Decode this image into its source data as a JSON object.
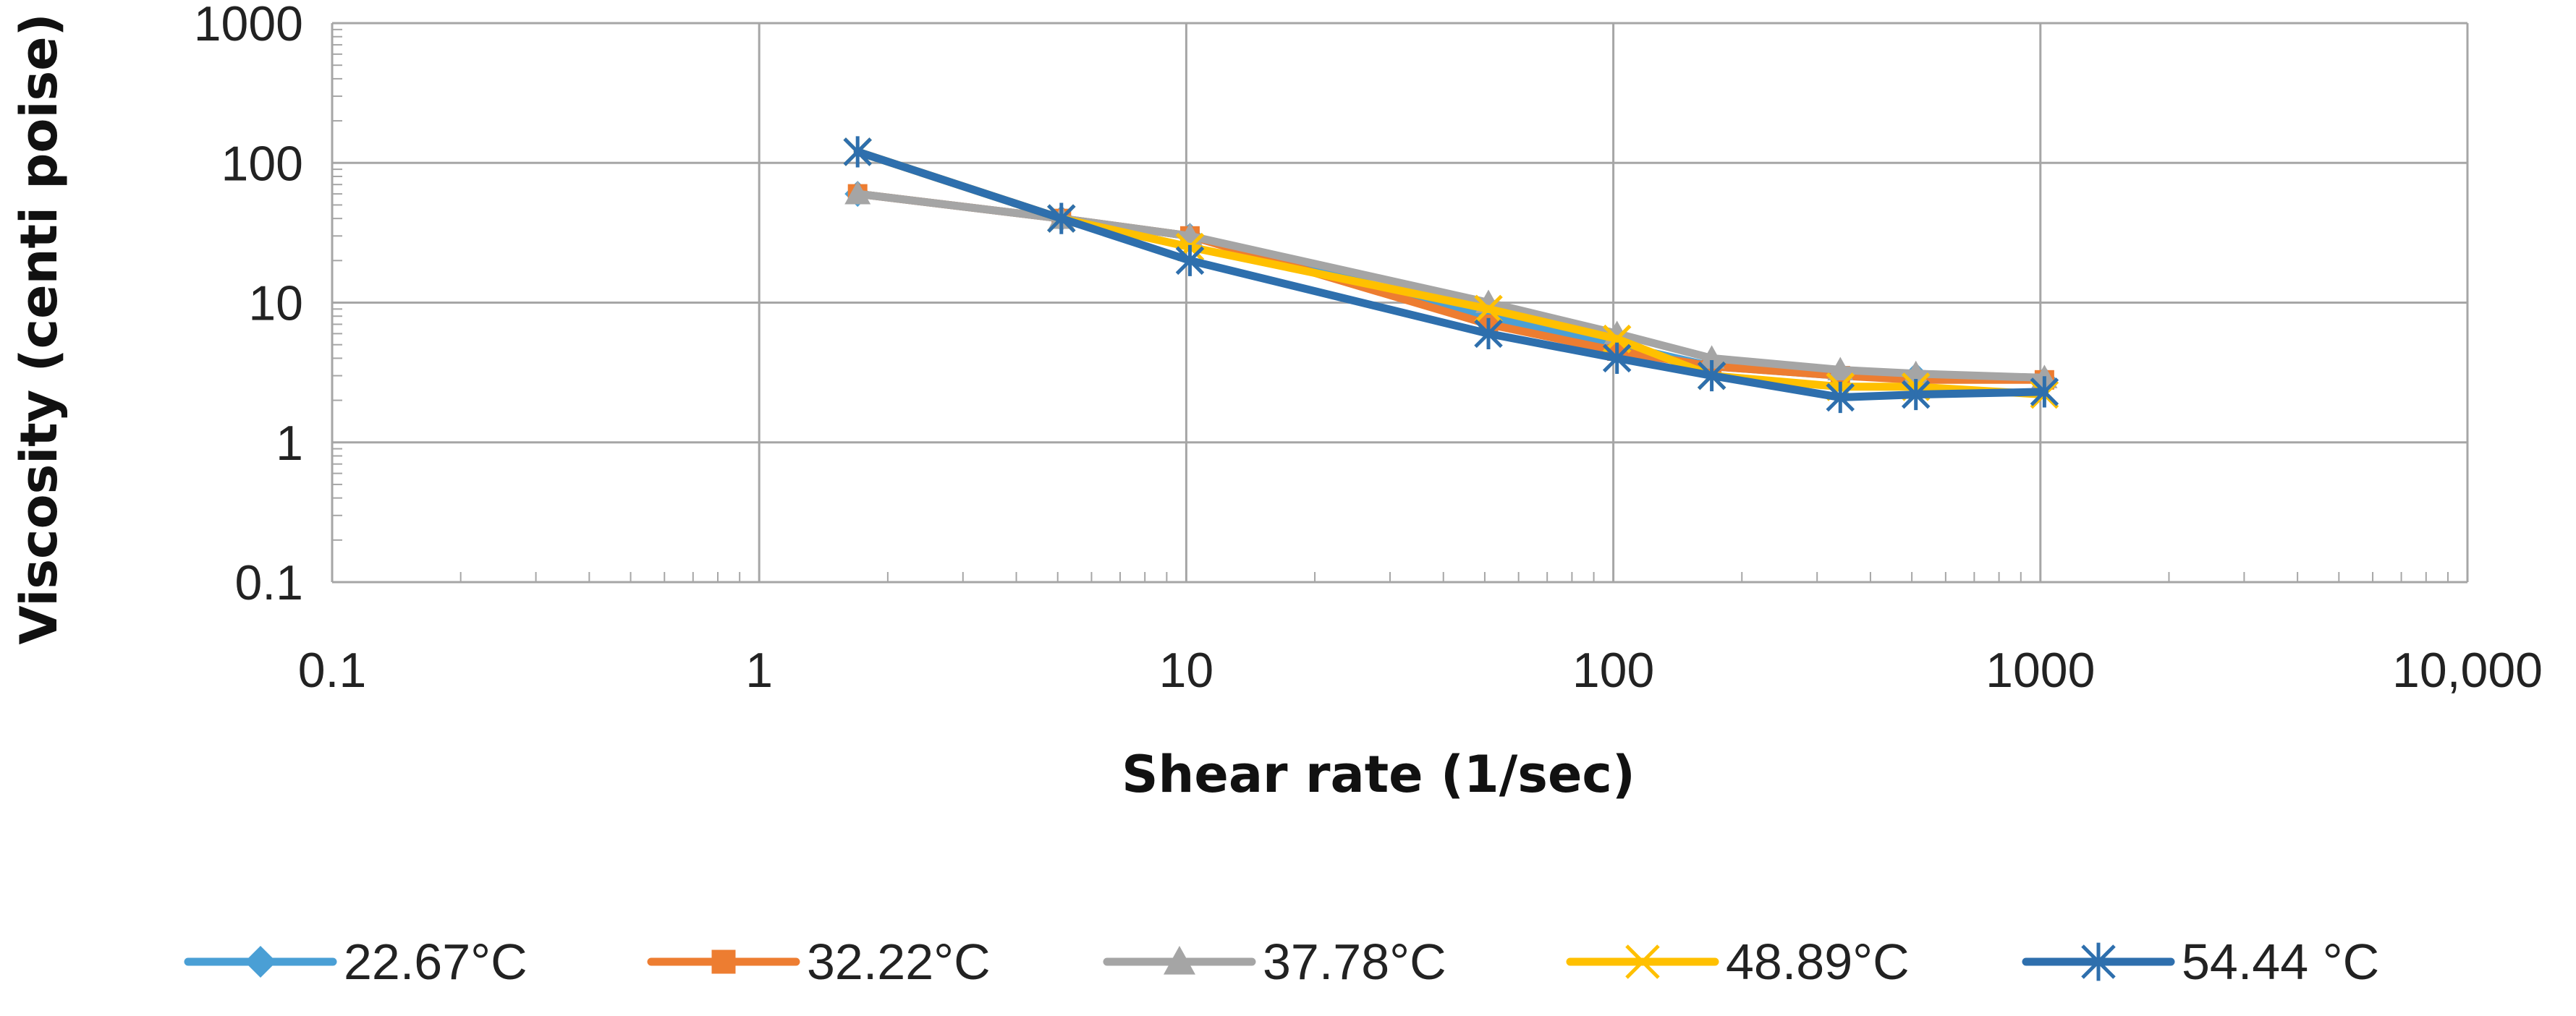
{
  "chart_data": {
    "type": "line",
    "title": "",
    "xlabel": "Shear rate (1/sec)",
    "ylabel": "Viscosity (centi poise)",
    "xscale": "log",
    "yscale": "log",
    "xlim": [
      0.1,
      10000
    ],
    "ylim": [
      0.1,
      1000
    ],
    "x_tick_labels": [
      "0.1",
      "1",
      "10",
      "100",
      "1000",
      "10,000"
    ],
    "y_tick_labels": [
      "0.1",
      "1",
      "10",
      "100",
      "1000"
    ],
    "grid": true,
    "legend_position": "bottom",
    "series": [
      {
        "name": "22.67°C",
        "color": "#4a9fd5",
        "marker": "diamond",
        "x": [
          1.7,
          5.1,
          10.2,
          51,
          102,
          170,
          340,
          511,
          1022
        ],
        "y": [
          60,
          40,
          30,
          8,
          5,
          3.5,
          3,
          3,
          2.8
        ]
      },
      {
        "name": "32.22°C",
        "color": "#ed7d31",
        "marker": "square",
        "x": [
          1.7,
          5.1,
          10.2,
          51,
          102,
          170,
          340,
          511,
          1022
        ],
        "y": [
          60,
          40,
          30,
          7,
          4.5,
          3.5,
          3,
          2.8,
          2.8
        ]
      },
      {
        "name": "37.78°C",
        "color": "#a5a5a5",
        "marker": "triangle",
        "x": [
          1.7,
          5.1,
          10.2,
          51,
          102,
          170,
          340,
          511,
          1022
        ],
        "y": [
          60,
          40,
          30,
          10,
          6,
          4,
          3.3,
          3.1,
          2.9
        ]
      },
      {
        "name": "48.89°C",
        "color": "#ffc000",
        "marker": "x",
        "x": [
          1.7,
          5.1,
          10.2,
          51,
          102,
          170,
          340,
          511,
          1022
        ],
        "y": [
          120,
          40,
          25,
          9,
          5.5,
          3,
          2.5,
          2.5,
          2.2
        ]
      },
      {
        "name": "54.44 °C",
        "color": "#2e6fad",
        "marker": "star",
        "x": [
          1.7,
          5.1,
          10.2,
          51,
          102,
          170,
          340,
          511,
          1022
        ],
        "y": [
          120,
          40,
          20,
          6,
          4,
          3,
          2.1,
          2.2,
          2.3
        ]
      }
    ]
  }
}
